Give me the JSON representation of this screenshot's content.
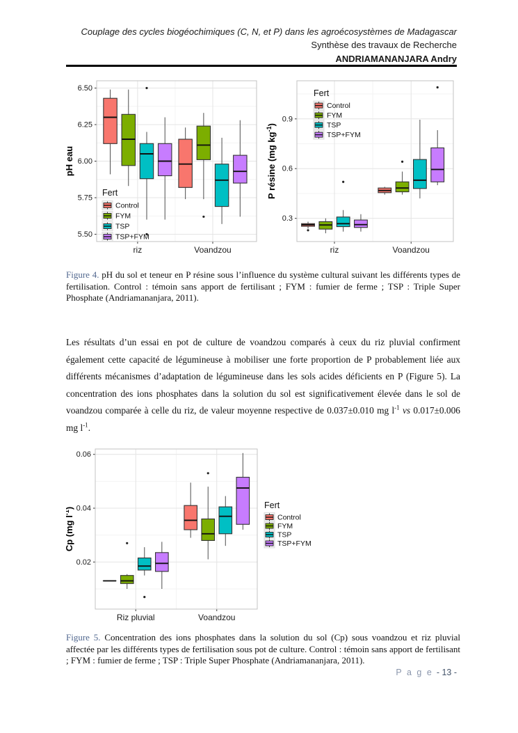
{
  "header": {
    "line1": "Couplage des cycles biogéochimiques (C, N, et P) dans les agroécosystèmes de Madagascar",
    "line2": "Synthèse des travaux de Recherche",
    "line3": "ANDRIAMANANJARA Andry"
  },
  "figure4": {
    "label": "Figure 4.",
    "text": "pH du sol et teneur en P résine sous l’influence du système cultural suivant les différents types de fertilisation. Control : témoin sans apport de fertilisant ; FYM : fumier de ferme ; TSP : Triple Super Phosphate (Andriamananjara, 2011)."
  },
  "paragraph": {
    "part1": "Les résultats d’un essai en pot de culture de voandzou comparés à ceux du riz pluvial confirment également cette capacité de légumineuse à mobiliser une forte proportion de P probablement liée aux différents mécanismes d’adaptation de légumineuse dans les sols acides déficients en P (Figure 5). La concentration des ions phosphates dans la solution du sol est significativement élevée dans le sol de voandzou comparée à celle du riz, de valeur moyenne respective de 0.037±0.010 mg l",
    "sup1": "-1",
    "vs_word": "vs",
    "part3": "0.017±0.006 mg l",
    "sup2": "-1",
    "part4": "."
  },
  "figure5": {
    "label": "Figure 5.",
    "text": "Concentration des ions phosphates dans la solution du sol (Cp) sous voandzou et riz pluvial affectée par les différents types de fertilisation sous pot de culture. Control : témoin sans apport de fertilisant ; FYM : fumier de ferme ; TSP : Triple Super Phosphate (Andriamananjara, 2011)."
  },
  "footer": {
    "page_word": "P a g e",
    "page_number": "- 13 -"
  },
  "colors": {
    "control": "#F8766D",
    "fym": "#7CAE00",
    "tsp": "#00BFC4",
    "tsp_fym": "#C77CFF",
    "figure_label_blue": "#52688f",
    "footer_gray_blue": "#8a96ac",
    "footer_dark_blue": "#44546a"
  },
  "chart_data": [
    {
      "name": "ph-eau",
      "type": "boxplot",
      "ylabel": [
        {
          "t": "pH eau"
        }
      ],
      "categories": [
        "riz",
        "Voandzou"
      ],
      "ylim": [
        5.45,
        6.55
      ],
      "yticks": [
        5.5,
        5.75,
        6.0,
        6.25,
        6.5
      ],
      "ytick_labels": [
        "5.50",
        "5.75",
        "6.00",
        "6.25",
        "6.50"
      ],
      "legend": {
        "title": "Fert",
        "position": "inside-bottom-left"
      },
      "series": [
        {
          "name": "Control",
          "color": "#F8766D",
          "boxes": [
            {
              "lo": 5.91,
              "q1": 6.12,
              "med": 6.3,
              "q3": 6.43,
              "hi": 6.49
            },
            {
              "lo": 5.74,
              "q1": 5.82,
              "med": 5.98,
              "q3": 6.15,
              "hi": 6.23
            }
          ]
        },
        {
          "name": "FYM",
          "color": "#7CAE00",
          "boxes": [
            {
              "lo": 5.83,
              "q1": 5.97,
              "med": 6.15,
              "q3": 6.32,
              "hi": 6.49
            },
            {
              "lo": 5.74,
              "q1": 6.01,
              "med": 6.11,
              "q3": 6.24,
              "hi": 6.33,
              "out": [
                5.62
              ]
            }
          ]
        },
        {
          "name": "TSP",
          "color": "#00BFC4",
          "boxes": [
            {
              "lo": 5.6,
              "q1": 5.88,
              "med": 6.05,
              "q3": 6.12,
              "hi": 6.2,
              "out": [
                6.5,
                5.5
              ]
            },
            {
              "lo": 5.57,
              "q1": 5.69,
              "med": 5.87,
              "q3": 5.98,
              "hi": 6.16
            }
          ]
        },
        {
          "name": "TSP+FYM",
          "color": "#C77CFF",
          "boxes": [
            {
              "lo": 5.6,
              "q1": 5.9,
              "med": 6.0,
              "q3": 6.12,
              "hi": 6.3
            },
            {
              "lo": 5.62,
              "q1": 5.85,
              "med": 5.93,
              "q3": 6.04,
              "hi": 6.28
            }
          ]
        }
      ]
    },
    {
      "name": "p-resine",
      "type": "boxplot",
      "ylabel": [
        {
          "t": "P résine  (mg kg"
        },
        {
          "t": "-1",
          "sup": true
        },
        {
          "t": ")"
        }
      ],
      "categories": [
        "riz",
        "Voandzou"
      ],
      "ylim": [
        0.16,
        1.13
      ],
      "yticks": [
        0.3,
        0.6,
        0.9
      ],
      "ytick_labels": [
        "0.3",
        "0.6",
        "0.9"
      ],
      "legend": {
        "title": "Fert",
        "position": "inside-top-left"
      },
      "series": [
        {
          "name": "Control",
          "color": "#F8766D",
          "boxes": [
            {
              "lo": 0.238,
              "q1": 0.252,
              "med": 0.261,
              "q3": 0.268,
              "hi": 0.28,
              "out": [
                0.228
              ]
            },
            {
              "lo": 0.443,
              "q1": 0.455,
              "med": 0.468,
              "q3": 0.483,
              "hi": 0.49
            }
          ]
        },
        {
          "name": "FYM",
          "color": "#7CAE00",
          "boxes": [
            {
              "lo": 0.21,
              "q1": 0.235,
              "med": 0.26,
              "q3": 0.28,
              "hi": 0.3
            },
            {
              "lo": 0.443,
              "q1": 0.46,
              "med": 0.483,
              "q3": 0.52,
              "hi": 0.582,
              "out": [
                0.642
              ]
            }
          ]
        },
        {
          "name": "TSP",
          "color": "#00BFC4",
          "boxes": [
            {
              "lo": 0.22,
              "q1": 0.25,
              "med": 0.268,
              "q3": 0.308,
              "hi": 0.35,
              "out": [
                0.52
              ]
            },
            {
              "lo": 0.42,
              "q1": 0.48,
              "med": 0.53,
              "q3": 0.655,
              "hi": 0.895
            }
          ]
        },
        {
          "name": "TSP+FYM",
          "color": "#C77CFF",
          "boxes": [
            {
              "lo": 0.22,
              "q1": 0.245,
              "med": 0.262,
              "q3": 0.29,
              "hi": 0.325
            },
            {
              "lo": 0.5,
              "q1": 0.52,
              "med": 0.595,
              "q3": 0.725,
              "hi": 0.832,
              "out": [
                1.09
              ]
            }
          ]
        }
      ]
    },
    {
      "name": "cp",
      "type": "boxplot",
      "ylabel": [
        {
          "t": "Cp  (mg l"
        },
        {
          "t": "-1",
          "sup": true
        },
        {
          "t": ")"
        }
      ],
      "categories": [
        "Riz pluvial",
        "Voandzou"
      ],
      "ylim": [
        0.0025,
        0.062
      ],
      "yticks": [
        0.02,
        0.04,
        0.06
      ],
      "ytick_labels": [
        "0.02",
        "0.04",
        "0.06"
      ],
      "legend": {
        "title": "Fert",
        "position": "outside-right"
      },
      "series": [
        {
          "name": "Control",
          "color": "#F8766D",
          "boxes": [
            {
              "lo": 0.013,
              "q1": 0.013,
              "med": 0.013,
              "q3": 0.013,
              "hi": 0.013
            },
            {
              "lo": 0.029,
              "q1": 0.032,
              "med": 0.0355,
              "q3": 0.041,
              "hi": 0.0495
            }
          ]
        },
        {
          "name": "FYM",
          "color": "#7CAE00",
          "boxes": [
            {
              "lo": 0.01,
              "q1": 0.012,
              "med": 0.013,
              "q3": 0.015,
              "hi": 0.0155,
              "out": [
                0.027
              ]
            },
            {
              "lo": 0.021,
              "q1": 0.028,
              "med": 0.0305,
              "q3": 0.036,
              "hi": 0.048,
              "out": [
                0.053
              ]
            }
          ]
        },
        {
          "name": "TSP",
          "color": "#00BFC4",
          "boxes": [
            {
              "lo": 0.015,
              "q1": 0.017,
              "med": 0.0185,
              "q3": 0.0215,
              "hi": 0.0255,
              "out": [
                0.007
              ]
            },
            {
              "lo": 0.026,
              "q1": 0.0305,
              "med": 0.037,
              "q3": 0.0405,
              "hi": 0.0445
            }
          ]
        },
        {
          "name": "TSP+FYM",
          "color": "#C77CFF",
          "boxes": [
            {
              "lo": 0.01,
              "q1": 0.0165,
              "med": 0.0195,
              "q3": 0.0235,
              "hi": 0.0275
            },
            {
              "lo": 0.032,
              "q1": 0.034,
              "med": 0.0475,
              "q3": 0.0515,
              "hi": 0.0605
            }
          ]
        }
      ]
    }
  ]
}
